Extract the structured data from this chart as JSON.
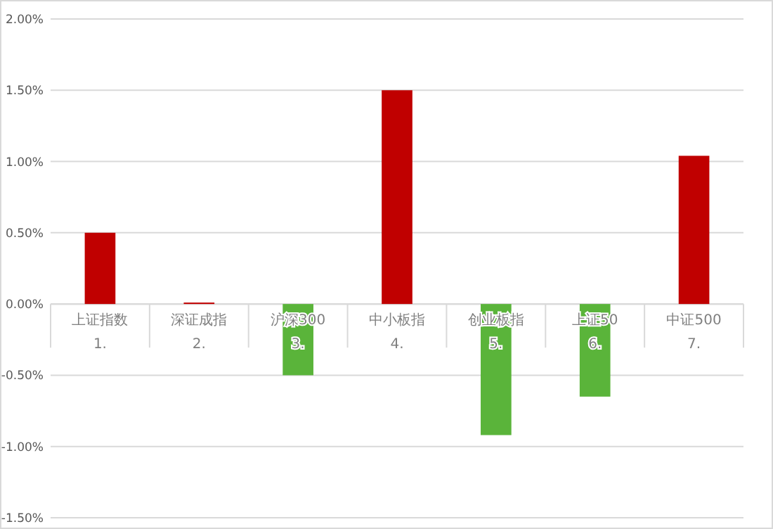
{
  "chart_data": {
    "type": "bar",
    "categories": [
      "上证指数\n1.",
      "深证成指\n2.",
      "沪深300\n3.",
      "中小板指\n4.",
      "创业板指\n5.",
      "上证50\n6.",
      "中证500\n7."
    ],
    "values": [
      0.5,
      0.01,
      -0.5,
      1.5,
      -0.92,
      -0.65,
      1.04
    ],
    "colors": [
      "#c00000",
      "#c00000",
      "#5ab43a",
      "#c00000",
      "#5ab43a",
      "#5ab43a",
      "#c00000"
    ],
    "ylim": [
      -1.5,
      2.0
    ],
    "yticks": [
      {
        "value": -1.5,
        "label": "-1.50%"
      },
      {
        "value": -1.0,
        "label": "-1.00%"
      },
      {
        "value": -0.5,
        "label": "-0.50%"
      },
      {
        "value": 0,
        "label": "0.00%"
      },
      {
        "value": 0.5,
        "label": "0.50%"
      },
      {
        "value": 1.0,
        "label": "1.00%"
      },
      {
        "value": 1.5,
        "label": "1.50%"
      },
      {
        "value": 2.0,
        "label": "2.00%"
      }
    ],
    "grid": "y"
  }
}
